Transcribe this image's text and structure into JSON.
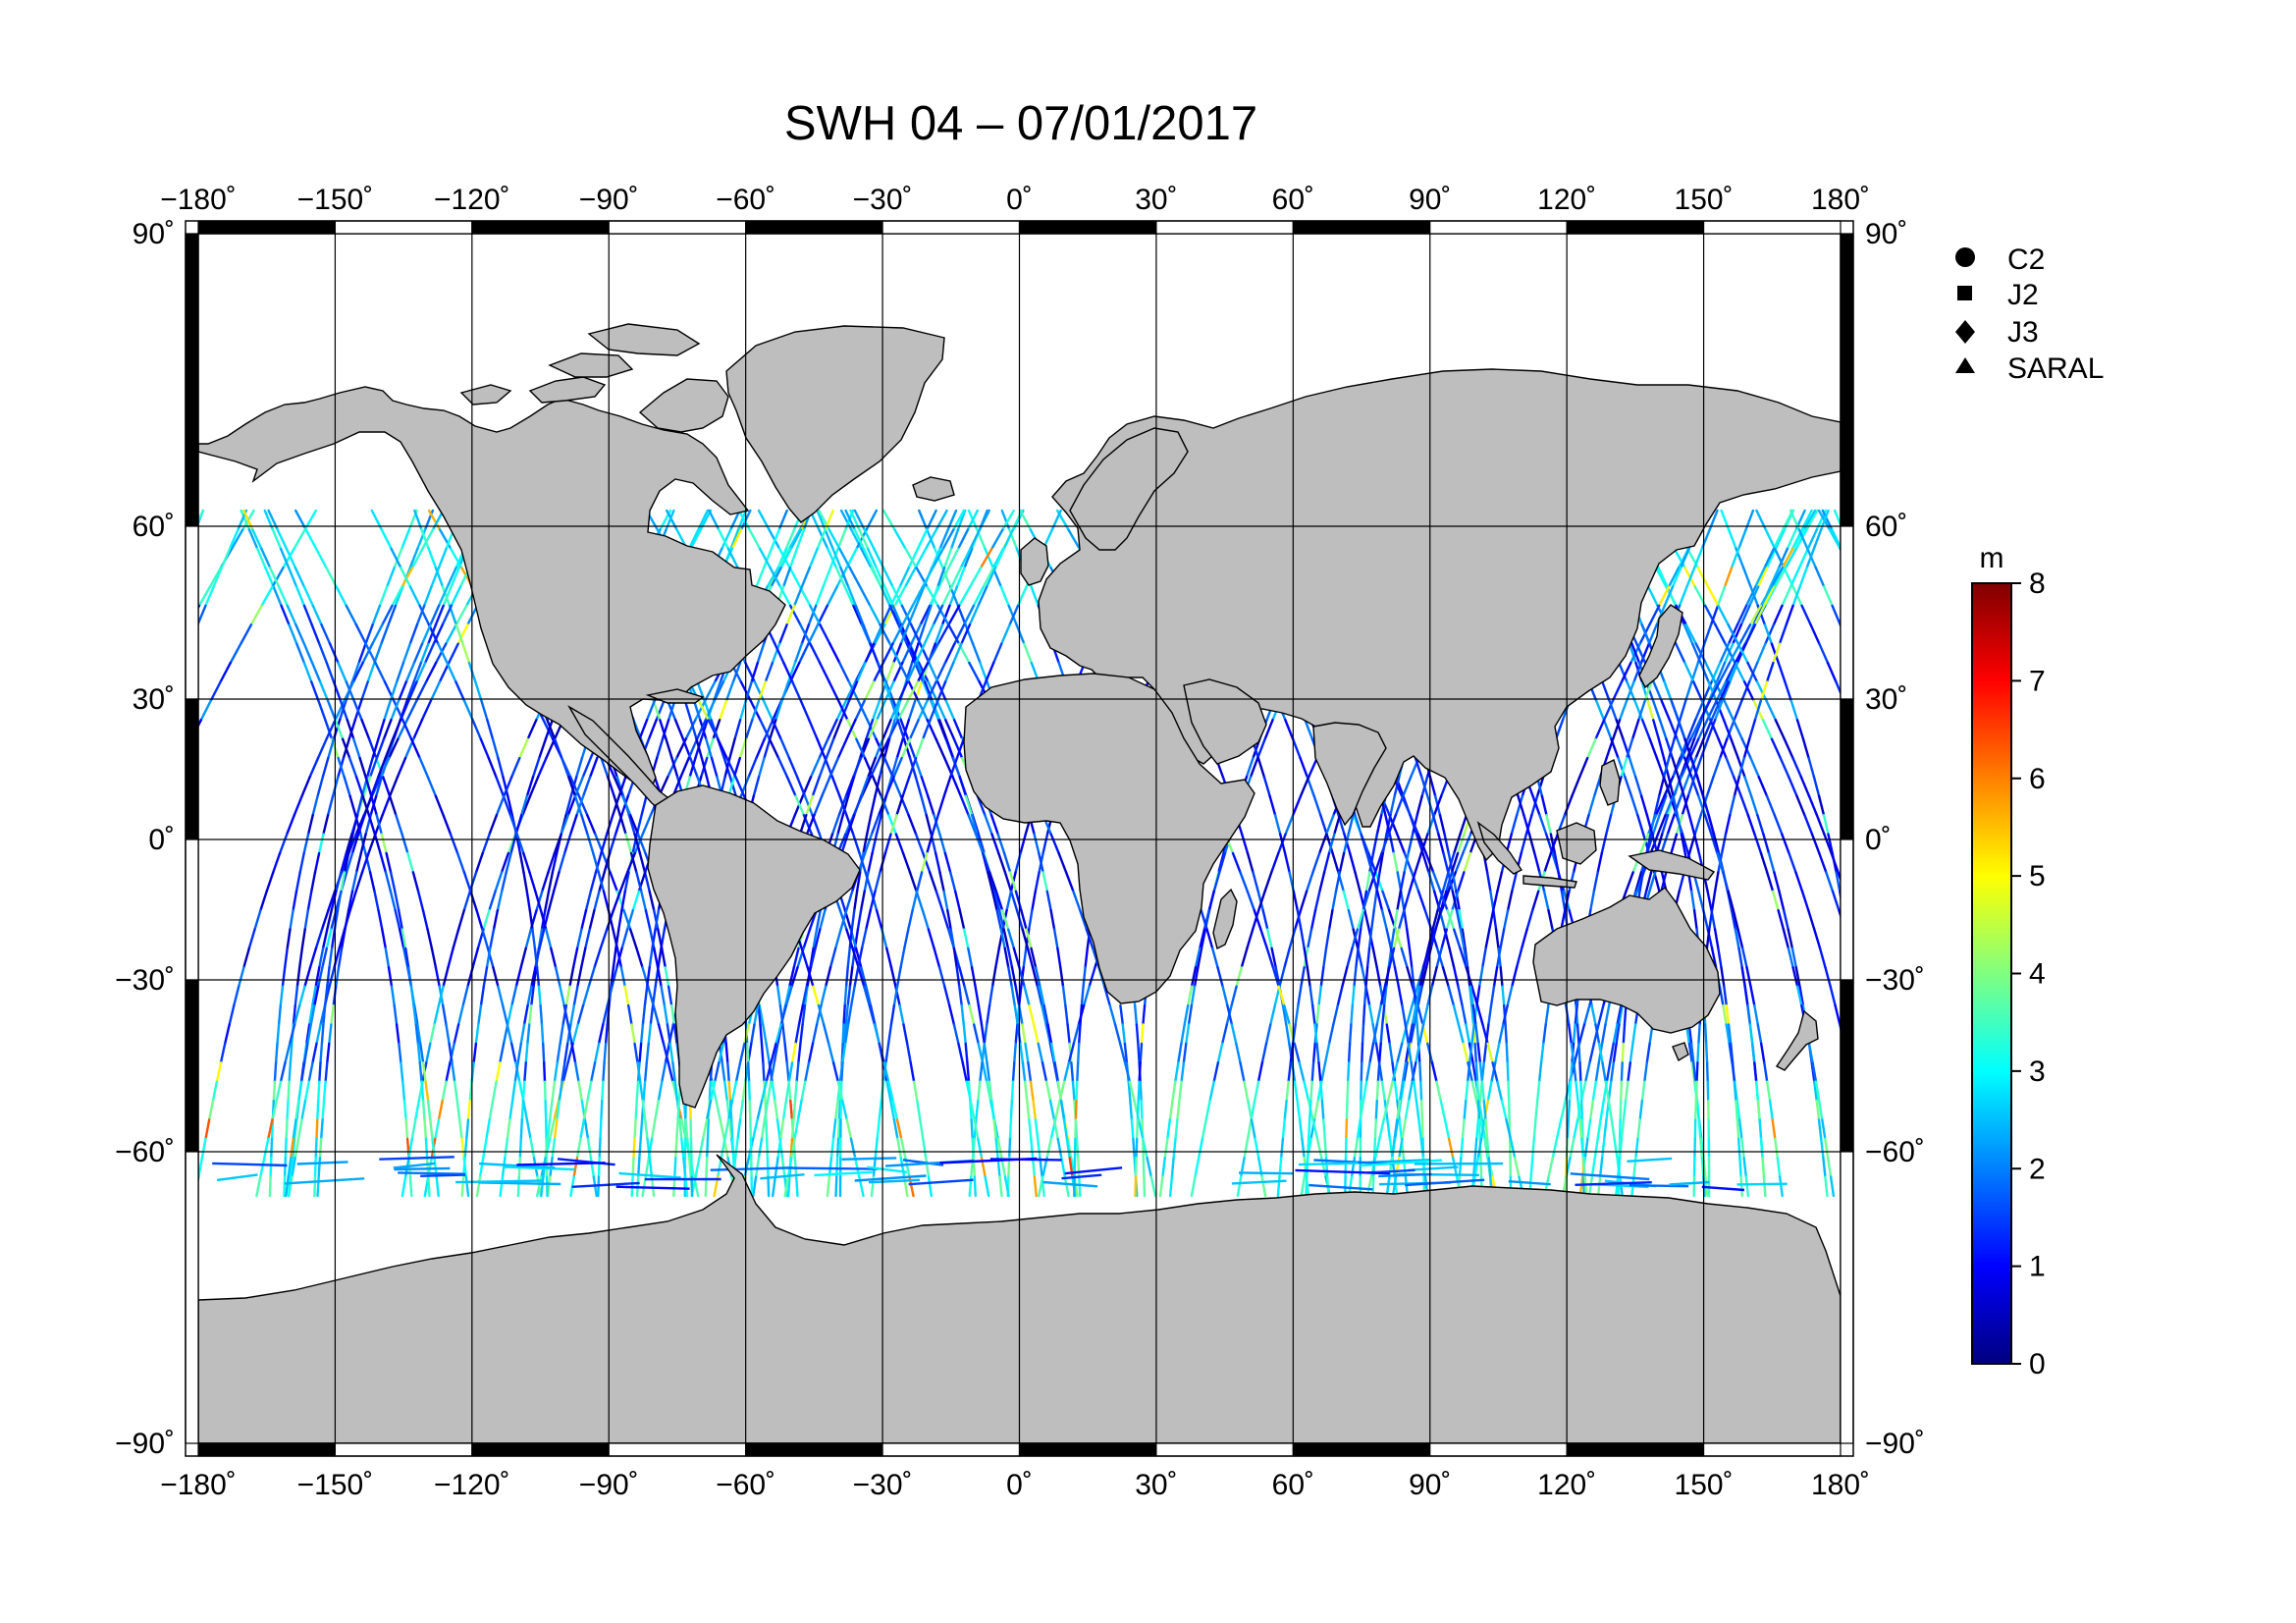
{
  "title": "SWH 04 – 07/01/2017",
  "lon_ticks": [
    "−180˚",
    "−150˚",
    "−120˚",
    "−90˚",
    "−60˚",
    "−30˚",
    "0˚",
    "30˚",
    "60˚",
    "90˚",
    "120˚",
    "150˚",
    "180˚"
  ],
  "lat_ticks": [
    "90˚",
    "60˚",
    "30˚",
    "0˚",
    "−30˚",
    "−60˚",
    "−90˚"
  ],
  "legend": [
    {
      "marker": "circle",
      "label": "C2"
    },
    {
      "marker": "square",
      "label": "J2"
    },
    {
      "marker": "diamond",
      "label": "J3"
    },
    {
      "marker": "triangle",
      "label": "SARAL"
    }
  ],
  "colorbar": {
    "unit": "m",
    "min": 0,
    "max": 8,
    "tick_labels": [
      "8",
      "7",
      "6",
      "5",
      "4",
      "3",
      "2",
      "1",
      "0"
    ],
    "colors": [
      "#000080",
      "#0000ff",
      "#0080ff",
      "#00ffff",
      "#80ff80",
      "#ffff00",
      "#ff8000",
      "#ff0000",
      "#800000"
    ]
  },
  "colors": {
    "land": "#bebebe",
    "ocean": "#ffffff"
  }
}
